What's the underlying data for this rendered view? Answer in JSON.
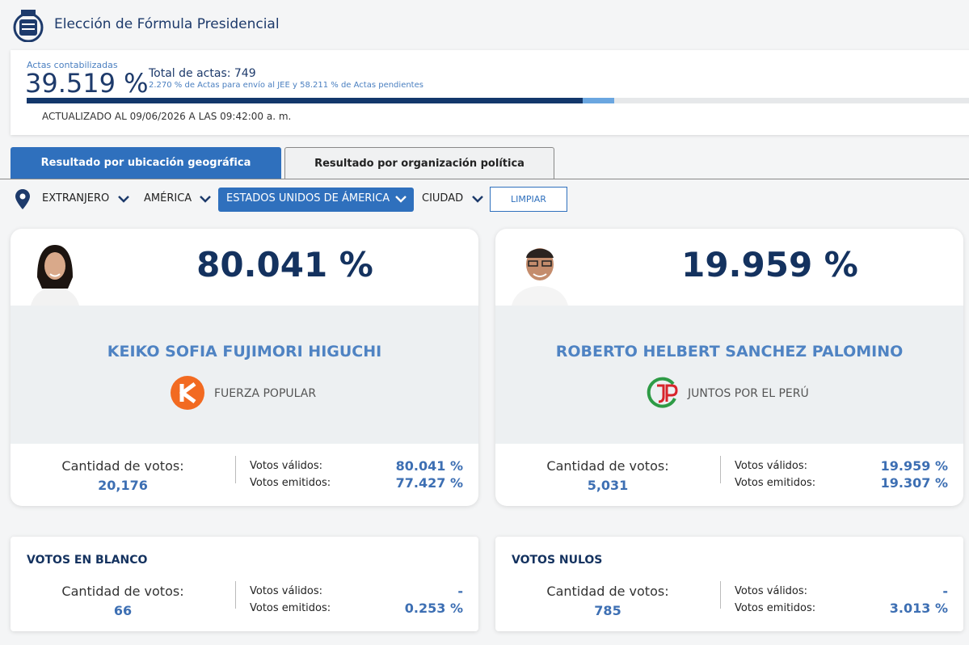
{
  "header": {
    "title": "Elección de Fórmula Presidencial"
  },
  "progress": {
    "label": "Actas contabilizadas",
    "percent": "39.519 %",
    "total": "Total de actas: 749",
    "detail": [
      "2.270 %",
      " de Actas para envío al JEE y ",
      "58.211 %",
      " de Actas pendientes"
    ],
    "updated": "ACTUALIZADO AL 09/06/2026 A LAS 09:42:00 a. m."
  },
  "tabs": [
    "Resultado por ubicación geográfica",
    "Resultado por organización política"
  ],
  "filters": [
    "EXTRANJERO",
    "AMÉRICA",
    "ESTADOS UNIDOS DE ÁMERICA",
    "CIUDAD"
  ],
  "clear_button": "LIMPIAR",
  "candidates": [
    {
      "percent": "80.041 %",
      "name": "KEIKO SOFIA FUJIMORI HIGUCHI",
      "party": "FUERZA POPULAR",
      "votes_label": "Cantidad de votos:",
      "votes": "20,176",
      "valid_label": "Votos válidos:",
      "valid": "80.041 %",
      "emitted_label": "Votos emitidos:",
      "emitted": "77.427 %"
    },
    {
      "percent": "19.959 %",
      "name": "ROBERTO HELBERT SANCHEZ PALOMINO",
      "party": "JUNTOS POR EL PERÚ",
      "votes_label": "Cantidad de votos:",
      "votes": "5,031",
      "valid_label": "Votos válidos:",
      "valid": "19.959 %",
      "emitted_label": "Votos emitidos:",
      "emitted": "19.307 %"
    }
  ],
  "other": [
    {
      "title": "VOTOS EN BLANCO",
      "votes_label": "Cantidad de votos:",
      "votes": "66",
      "valid_label": "Votos válidos:",
      "valid": "-",
      "emitted_label": "Votos emitidos:",
      "emitted": "0.253 %"
    },
    {
      "title": "VOTOS NULOS",
      "votes_label": "Cantidad de votos:",
      "votes": "785",
      "valid_label": "Votos válidos:",
      "valid": "-",
      "emitted_label": "Votos emitidos:",
      "emitted": "3.013 %"
    }
  ]
}
